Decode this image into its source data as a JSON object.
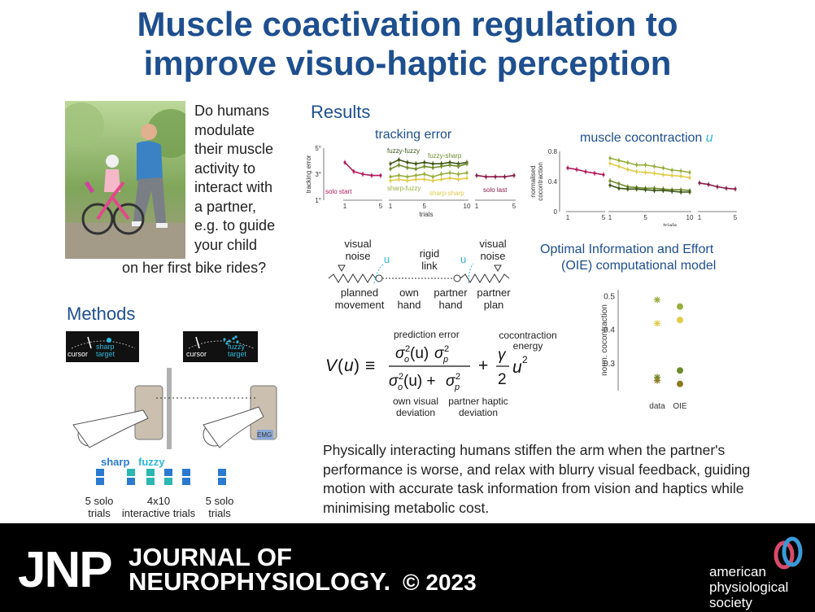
{
  "title": {
    "line1": "Muscle coactivation regulation to",
    "line2": "improve visuo-haptic perception"
  },
  "question": {
    "lines": [
      "Do humans",
      "modulate",
      "their muscle",
      "activity to",
      "interact with",
      "a partner,",
      "e.g. to guide",
      "your child"
    ],
    "last_line": "on her first bike rides?"
  },
  "methods": {
    "heading": "Methods",
    "screen_left": {
      "cursor": "cursor",
      "target": "sharp\ntarget"
    },
    "screen_right": {
      "cursor": "cursor",
      "target": "fuzzy\ntarget"
    },
    "emg": "EMG",
    "legend": {
      "sharp": "sharp",
      "fuzzy": "fuzzy"
    },
    "trials": [
      "5 solo\ntrials",
      "4x10\ninteractive trials",
      "5 solo\ntrials"
    ]
  },
  "results": {
    "heading": "Results",
    "tracking_title": "tracking error",
    "cocontraction_title": "muscle cocontraction",
    "cocontraction_symbol": "u",
    "oie_title_1": "Optimal Information and Effort",
    "oie_title_2": "(OIE) computational model"
  },
  "model": {
    "visual_noise_left": "visual\nnoise",
    "rigid_link": "rigid\nlink",
    "visual_noise_right": "visual\nnoise",
    "u_left": "u",
    "u_right": "u",
    "planned": "planned\nmovement",
    "own_hand": "own\nhand",
    "partner_hand": "partner\nhand",
    "partner_plan": "partner\nplan"
  },
  "equation": {
    "prediction_error": "prediction error",
    "cocontraction_energy": "cocontraction\nenergy",
    "own_visual": "own visual\ndeviation",
    "partner_haptic": "partner haptic\ndeviation"
  },
  "summary": "Physically interacting humans stiffen the arm when the partner's performance is worse, and relax with blurry visual feedback, guiding motion with accurate task information from vision and haptics while minimising metabolic cost.",
  "footer": {
    "logo": "JNP",
    "journal_line1": "JOURNAL OF",
    "journal_line2": "NEUROPHYSIOLOGY.",
    "copyright": "© 2023",
    "society": "american\nphysiological\nsociety"
  },
  "chart_data": [
    {
      "type": "line",
      "ylabel": "tracking error",
      "xlabel": "trials",
      "yticks": [
        "1°",
        "3°",
        "5°"
      ],
      "ylim": [
        1,
        5
      ],
      "panels": [
        {
          "x": [
            1,
            2,
            3,
            4,
            5
          ],
          "xticks": [
            1,
            5
          ],
          "series": [
            {
              "name": "solo start",
              "color": "#b5185e",
              "values": [
                3.9,
                3.2,
                3.0,
                2.9,
                2.9
              ]
            }
          ]
        },
        {
          "x": [
            1,
            2,
            3,
            4,
            5,
            6,
            7,
            8,
            9,
            10
          ],
          "xticks": [
            1,
            5,
            10
          ],
          "series": [
            {
              "name": "fuzzy-fuzzy",
              "color": "#3e5618",
              "values": [
                3.8,
                4.1,
                3.9,
                3.8,
                3.9,
                3.8,
                3.8,
                3.9,
                3.8,
                3.9
              ]
            },
            {
              "name": "fuzzy-sharp",
              "color": "#6f8a2a",
              "values": [
                3.4,
                3.7,
                3.5,
                3.4,
                3.6,
                3.5,
                3.6,
                3.7,
                3.6,
                3.8
              ]
            },
            {
              "name": "sharp-fuzzy",
              "color": "#97ae3c",
              "values": [
                2.8,
                2.9,
                2.8,
                2.9,
                3.0,
                2.8,
                3.0,
                3.1,
                3.0,
                3.1
              ]
            },
            {
              "name": "sharp-sharp",
              "color": "#e0cc4a",
              "values": [
                2.5,
                2.6,
                2.5,
                2.6,
                2.6,
                2.5,
                2.6,
                2.7,
                2.6,
                2.7
              ]
            }
          ]
        },
        {
          "x": [
            1,
            2,
            3,
            4,
            5
          ],
          "xticks": [
            1,
            5
          ],
          "series": [
            {
              "name": "solo last",
              "color": "#8a1c4a",
              "values": [
                2.9,
                2.8,
                2.8,
                2.8,
                2.9
              ]
            }
          ]
        }
      ]
    },
    {
      "type": "line",
      "ylabel": "normalised\ncocontraction",
      "xlabel": "trials",
      "yticks": [
        "0",
        "0.4",
        "0.8"
      ],
      "ylim": [
        0,
        0.8
      ],
      "panels": [
        {
          "x": [
            1,
            2,
            3,
            4,
            5
          ],
          "xticks": [
            1,
            5
          ],
          "series": [
            {
              "color": "#b5185e",
              "values": [
                0.58,
                0.56,
                0.53,
                0.51,
                0.49
              ]
            }
          ]
        },
        {
          "x": [
            1,
            2,
            3,
            4,
            5,
            6,
            7,
            8,
            9,
            10
          ],
          "xticks": [
            1,
            5,
            10
          ],
          "series": [
            {
              "color": "#97ae3c",
              "values": [
                0.71,
                0.68,
                0.65,
                0.62,
                0.62,
                0.6,
                0.58,
                0.55,
                0.54,
                0.52
              ]
            },
            {
              "color": "#e0cc4a",
              "values": [
                0.64,
                0.6,
                0.56,
                0.53,
                0.52,
                0.51,
                0.49,
                0.48,
                0.47,
                0.45
              ]
            },
            {
              "color": "#6f8a2a",
              "values": [
                0.41,
                0.37,
                0.33,
                0.32,
                0.31,
                0.31,
                0.3,
                0.29,
                0.29,
                0.28
              ]
            },
            {
              "color": "#3e5618",
              "values": [
                0.35,
                0.31,
                0.3,
                0.3,
                0.29,
                0.28,
                0.28,
                0.27,
                0.26,
                0.26
              ]
            }
          ]
        },
        {
          "x": [
            1,
            2,
            3,
            4,
            5
          ],
          "xticks": [
            1,
            5
          ],
          "series": [
            {
              "color": "#8a1c4a",
              "values": [
                0.38,
                0.36,
                0.33,
                0.31,
                0.3
              ]
            }
          ]
        }
      ]
    },
    {
      "type": "scatter",
      "ylabel": "norm. cocontraction",
      "categories": [
        "data",
        "OIE"
      ],
      "yticks": [
        0.3,
        0.4,
        0.5
      ],
      "ylim": [
        0.22,
        0.52
      ],
      "series": [
        {
          "color": "#97ae3c",
          "values": [
            0.49,
            0.47
          ]
        },
        {
          "color": "#e0cc4a",
          "values": [
            0.42,
            0.43
          ]
        },
        {
          "color": "#6f8a2a",
          "values": [
            0.26,
            0.28
          ]
        },
        {
          "color": "#8a7a20",
          "values": [
            0.25,
            0.24
          ]
        }
      ]
    }
  ]
}
